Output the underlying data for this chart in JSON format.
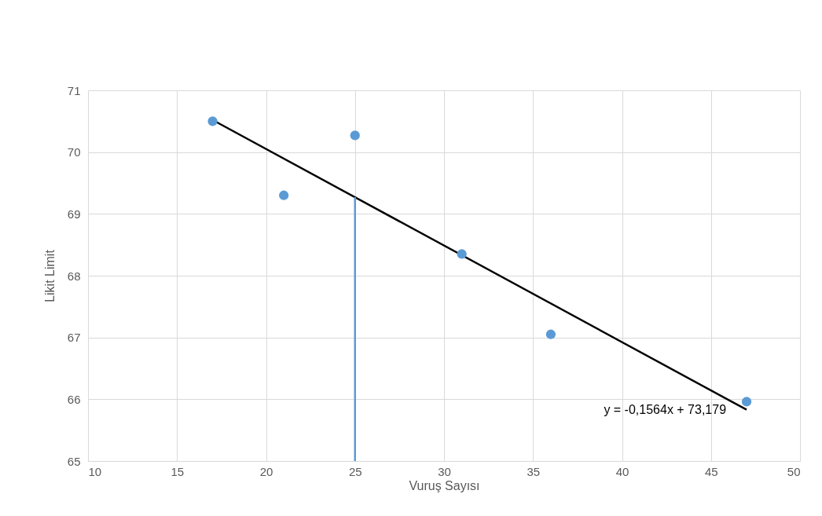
{
  "chart_data": {
    "type": "scatter",
    "xlabel": "Vuruş Sayısı",
    "ylabel": "Likit Limit",
    "xlim": [
      10,
      50
    ],
    "xticks": [
      10,
      15,
      20,
      25,
      30,
      35,
      40,
      45,
      50
    ],
    "ylim": [
      65,
      71
    ],
    "yticks": [
      65,
      66,
      67,
      68,
      69,
      70,
      71
    ],
    "grid": true,
    "series": [
      {
        "type": "line",
        "color": "#000000",
        "x": [
          17,
          47
        ],
        "values": [
          70.52,
          65.83
        ]
      },
      {
        "type": "line",
        "color": "#5b9bd5",
        "x": [
          25,
          25
        ],
        "values": [
          65,
          69.27
        ]
      },
      {
        "marker": "circle",
        "color": "#5b9bd5",
        "x": [
          17,
          21,
          25,
          31,
          36,
          47
        ],
        "values": [
          70.5,
          69.3,
          70.27,
          68.35,
          67.05,
          65.96
        ]
      }
    ],
    "annotations": [
      {
        "text": "y = -0,1564x + 73,179",
        "x": 47,
        "y": 65.83
      }
    ]
  }
}
